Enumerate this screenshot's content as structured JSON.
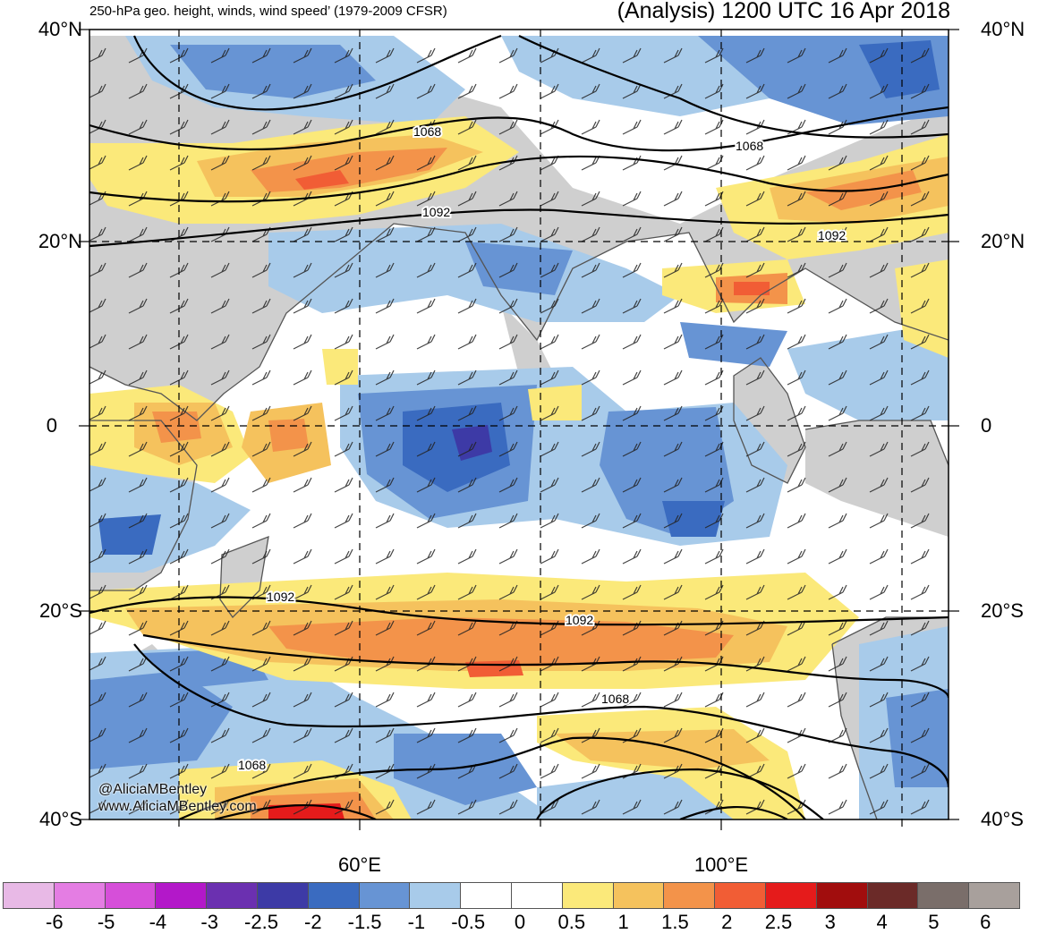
{
  "title": {
    "left": "250-hPa geo. height, winds, wind speed’ (1979-2009 CFSR)",
    "right": "(Analysis) 1200 UTC 16 Apr 2018"
  },
  "lat_labels": [
    "40°N",
    "20°N",
    "0",
    "20°S",
    "40°S"
  ],
  "lon_labels": [
    "60°E",
    "100°E"
  ],
  "contour_labels": [
    "1068",
    "1092",
    "1068",
    "1092",
    "1092",
    "1092",
    "1068",
    "1068"
  ],
  "watermark": {
    "line1": "@AliciaMBentley",
    "line2": "www.AliciaMBentley.com"
  },
  "colorbar": {
    "colors": [
      "#e8b9e6",
      "#e47de3",
      "#d64fd9",
      "#b318c9",
      "#6b30b0",
      "#3d3aa6",
      "#3a6bc0",
      "#6794d4",
      "#a8cbea",
      "#ffffff",
      "#ffffff",
      "#fbe97a",
      "#f5c25d",
      "#f3934a",
      "#f15d35",
      "#e51b1b",
      "#a10d0d",
      "#6b2a28",
      "#7a6e6a",
      "#a8a09c"
    ],
    "labels": [
      "-6",
      "-5",
      "-4",
      "-3",
      "-2.5",
      "-2",
      "-1.5",
      "-1",
      "-0.5",
      "0",
      "0.5",
      "1",
      "1.5",
      "2",
      "2.5",
      "3",
      "4",
      "5",
      "6"
    ]
  },
  "colors": {
    "land": "#cfcfcf",
    "neg_light": "#a8cbea",
    "neg_mid": "#6794d4",
    "neg_dark": "#3a6bc0",
    "neg_deep": "#3d3aa6",
    "pos_light": "#fbe97a",
    "pos_mid": "#f5c25d",
    "pos_orange": "#f3934a",
    "pos_red": "#f15d35",
    "pos_deep": "#e51b1b"
  }
}
